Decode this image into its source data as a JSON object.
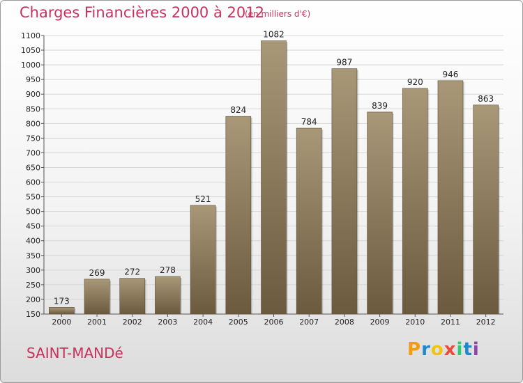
{
  "title": "Charges Financières 2000 à 2012",
  "unit_note": "(en milliers d'€)",
  "city": "SAINT-MANDé",
  "logo": {
    "text": "Proxiti",
    "letters": [
      "P",
      "r",
      "o",
      "x",
      "i",
      "t",
      "i"
    ],
    "colors": [
      "#f39c12",
      "#1e88c8",
      "#f1c40f",
      "#e74c3c",
      "#2ecc71",
      "#1e88c8",
      "#8e44ad"
    ]
  },
  "colors": {
    "bar_top": "#a89878",
    "bar_bottom": "#6b5a3e",
    "title": "#c7325c",
    "grid": "#d6d6d6"
  },
  "chart_data": {
    "type": "bar",
    "title": "Charges Financières 2000 à 2012",
    "subtitle": "(en milliers d'€)",
    "categories": [
      "2000",
      "2001",
      "2002",
      "2003",
      "2004",
      "2005",
      "2006",
      "2007",
      "2008",
      "2009",
      "2010",
      "2011",
      "2012"
    ],
    "values": [
      173,
      269,
      272,
      278,
      521,
      824,
      1082,
      784,
      987,
      839,
      920,
      946,
      863
    ],
    "ylim": [
      150,
      1100
    ],
    "yticks": [
      150,
      200,
      250,
      300,
      350,
      400,
      450,
      500,
      550,
      600,
      650,
      700,
      750,
      800,
      850,
      900,
      950,
      1000,
      1050,
      1100
    ],
    "grid": true,
    "data_labels": true
  }
}
